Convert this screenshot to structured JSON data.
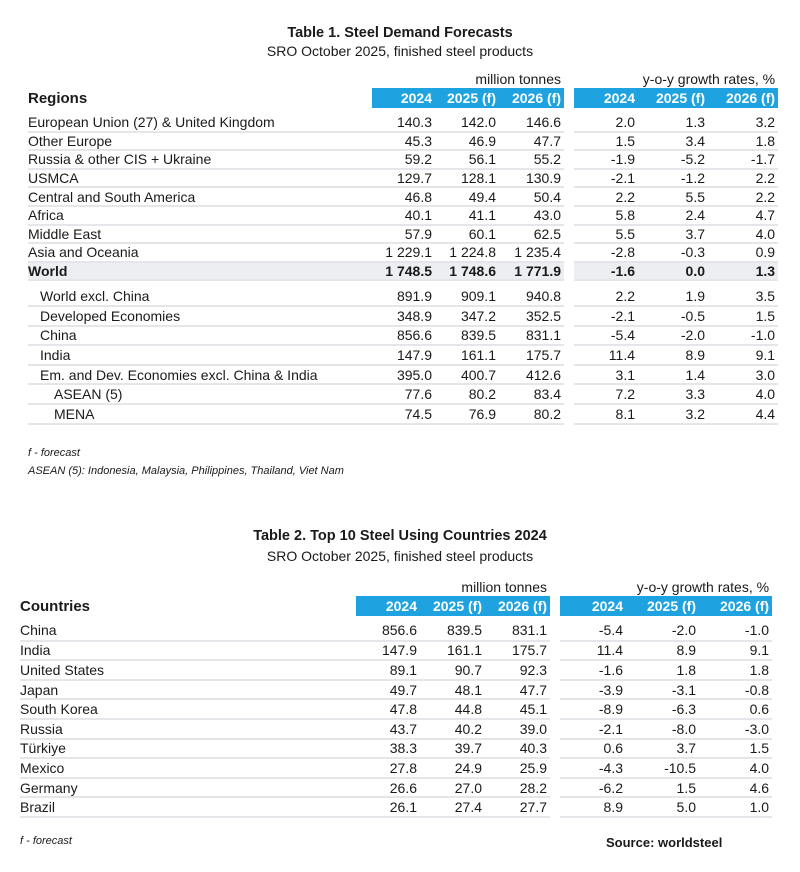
{
  "table1": {
    "title": "Table 1. Steel Demand Forecasts",
    "subtitle": "SRO October 2025, finished steel products",
    "units_left": "million tonnes",
    "units_right": "y-o-y growth rates, %",
    "label_header": "Regions",
    "columns": [
      "2024",
      "2025 (f)",
      "2026 (f)",
      "2024",
      "2025 (f)",
      "2026 (f)"
    ],
    "rows": [
      {
        "label": "European Union (27) & United Kingdom",
        "values": [
          "140.3",
          "142.0",
          "146.6",
          "2.0",
          "1.3",
          "3.2"
        ]
      },
      {
        "label": "Other Europe",
        "values": [
          "45.3",
          "46.9",
          "47.7",
          "1.5",
          "3.4",
          "1.8"
        ]
      },
      {
        "label": "Russia & other CIS + Ukraine",
        "values": [
          "59.2",
          "56.1",
          "55.2",
          "-1.9",
          "-5.2",
          "-1.7"
        ]
      },
      {
        "label": "USMCA",
        "values": [
          "129.7",
          "128.1",
          "130.9",
          "-2.1",
          "-1.2",
          "2.2"
        ]
      },
      {
        "label": "Central and South America",
        "values": [
          "46.8",
          "49.4",
          "50.4",
          "2.2",
          "5.5",
          "2.2"
        ]
      },
      {
        "label": "Africa",
        "values": [
          "40.1",
          "41.1",
          "43.0",
          "5.8",
          "2.4",
          "4.7"
        ]
      },
      {
        "label": "Middle East",
        "values": [
          "57.9",
          "60.1",
          "62.5",
          "5.5",
          "3.7",
          "4.0"
        ]
      },
      {
        "label": "Asia and Oceania",
        "values": [
          "1 229.1",
          "1 224.8",
          "1 235.4",
          "-2.8",
          "-0.3",
          "0.9"
        ]
      },
      {
        "label": "World",
        "values": [
          "1 748.5",
          "1 748.6",
          "1 771.9",
          "-1.6",
          "0.0",
          "1.3"
        ],
        "bold": true
      }
    ],
    "sub_rows": [
      {
        "label": "World excl. China",
        "values": [
          "891.9",
          "909.1",
          "940.8",
          "2.2",
          "1.9",
          "3.5"
        ],
        "indent": 1
      },
      {
        "label": "Developed Economies",
        "values": [
          "348.9",
          "347.2",
          "352.5",
          "-2.1",
          "-0.5",
          "1.5"
        ],
        "indent": 1
      },
      {
        "label": "China",
        "values": [
          "856.6",
          "839.5",
          "831.1",
          "-5.4",
          "-2.0",
          "-1.0"
        ],
        "indent": 1
      },
      {
        "label": "India",
        "values": [
          "147.9",
          "161.1",
          "175.7",
          "11.4",
          "8.9",
          "9.1"
        ],
        "indent": 1
      },
      {
        "label": "Em. and Dev. Economies excl. China & India",
        "values": [
          "395.0",
          "400.7",
          "412.6",
          "3.1",
          "1.4",
          "3.0"
        ],
        "indent": 1
      },
      {
        "label": "ASEAN (5)",
        "values": [
          "77.6",
          "80.2",
          "83.4",
          "7.2",
          "3.3",
          "4.0"
        ],
        "indent": 2
      },
      {
        "label": "MENA",
        "values": [
          "74.5",
          "76.9",
          "80.2",
          "8.1",
          "3.2",
          "4.4"
        ],
        "indent": 2
      }
    ],
    "note_forecast": "f - forecast",
    "note_asean": "ASEAN (5): Indonesia, Malaysia, Philippines, Thailand, Viet Nam"
  },
  "table2": {
    "title": "Table 2. Top 10 Steel Using Countries 2024",
    "subtitle": "SRO October 2025, finished steel products",
    "units_left": "million tonnes",
    "units_right": "y-o-y growth rates, %",
    "label_header": "Countries",
    "columns": [
      "2024",
      "2025 (f)",
      "2026 (f)",
      "2024",
      "2025 (f)",
      "2026 (f)"
    ],
    "rows": [
      {
        "label": "China",
        "values": [
          "856.6",
          "839.5",
          "831.1",
          "-5.4",
          "-2.0",
          "-1.0"
        ]
      },
      {
        "label": "India",
        "values": [
          "147.9",
          "161.1",
          "175.7",
          "11.4",
          "8.9",
          "9.1"
        ]
      },
      {
        "label": "United States",
        "values": [
          "89.1",
          "90.7",
          "92.3",
          "-1.6",
          "1.8",
          "1.8"
        ]
      },
      {
        "label": "Japan",
        "values": [
          "49.7",
          "48.1",
          "47.7",
          "-3.9",
          "-3.1",
          "-0.8"
        ]
      },
      {
        "label": "South Korea",
        "values": [
          "47.8",
          "44.8",
          "45.1",
          "-8.9",
          "-6.3",
          "0.6"
        ]
      },
      {
        "label": "Russia",
        "values": [
          "43.7",
          "40.2",
          "39.0",
          "-2.1",
          "-8.0",
          "-3.0"
        ]
      },
      {
        "label": "Türkiye",
        "values": [
          "38.3",
          "39.7",
          "40.3",
          "0.6",
          "3.7",
          "1.5"
        ]
      },
      {
        "label": "Mexico",
        "values": [
          "27.8",
          "24.9",
          "25.9",
          "-4.3",
          "-10.5",
          "4.0"
        ]
      },
      {
        "label": "Germany",
        "values": [
          "26.6",
          "27.0",
          "28.2",
          "-6.2",
          "1.5",
          "4.6"
        ]
      },
      {
        "label": "Brazil",
        "values": [
          "26.1",
          "27.4",
          "27.7",
          "8.9",
          "5.0",
          "1.0"
        ]
      }
    ],
    "note_forecast": "f - forecast",
    "source": "Source: worldsteel"
  }
}
